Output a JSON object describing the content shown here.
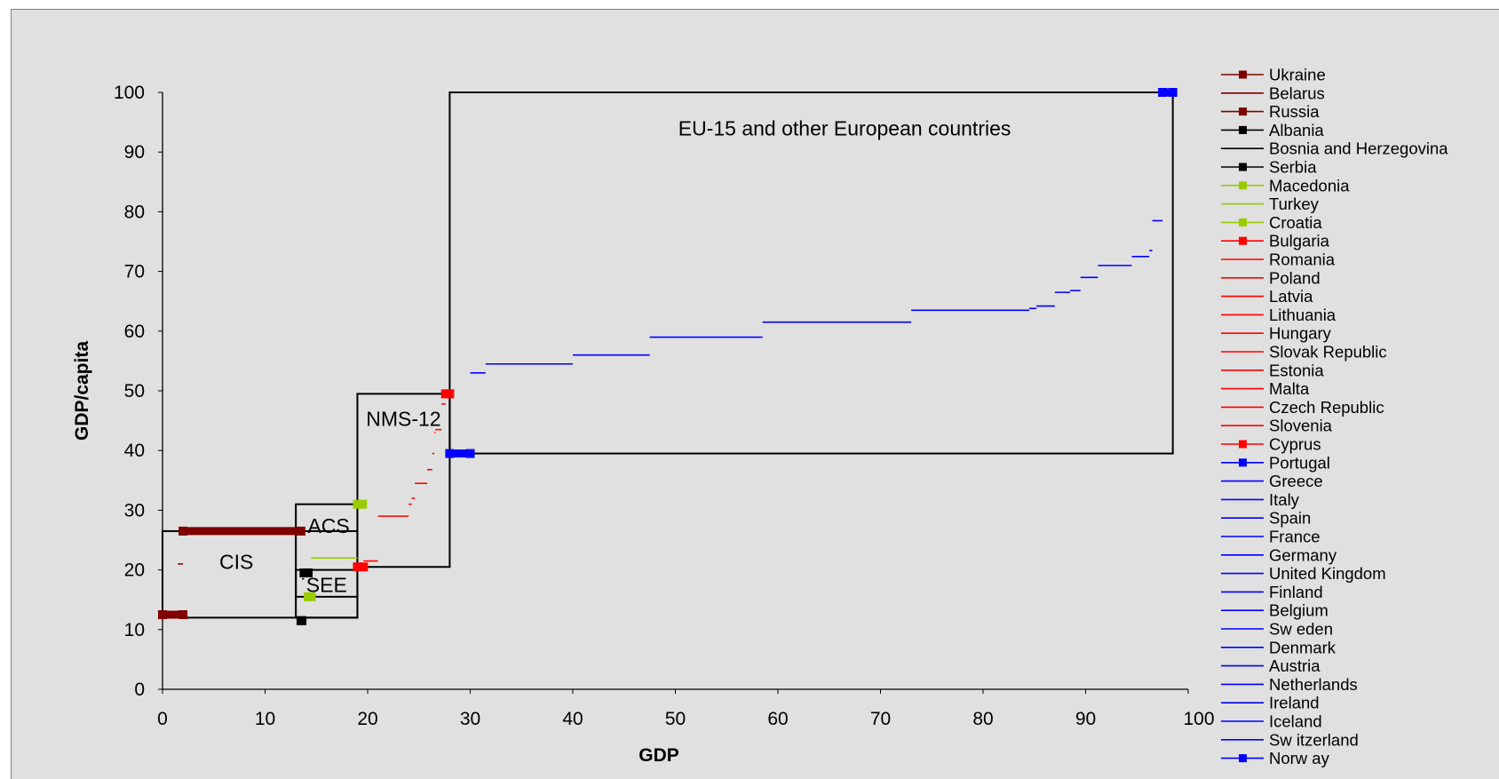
{
  "chart_data": {
    "type": "line",
    "xlabel": "GDP",
    "ylabel": "GDP/capita",
    "xlim": [
      0,
      100
    ],
    "ylim": [
      0,
      100
    ],
    "x_ticks": [
      "0",
      "10",
      "20",
      "30",
      "40",
      "50",
      "60",
      "70",
      "80",
      "90",
      "100"
    ],
    "y_ticks": [
      "0",
      "10",
      "20",
      "30",
      "40",
      "50",
      "60",
      "70",
      "80",
      "90",
      "100"
    ],
    "grid": false,
    "legend_position": "right",
    "regions": [
      {
        "label": "CIS",
        "x": [
          0,
          19
        ],
        "y": [
          12,
          26.5
        ]
      },
      {
        "label": "ACS",
        "x": [
          13,
          19
        ],
        "y": [
          12,
          31
        ]
      },
      {
        "label": "SEE",
        "x": [
          13,
          19
        ],
        "y": [
          15.5,
          20
        ]
      },
      {
        "label": "NMS-12",
        "x": [
          19,
          28
        ],
        "y": [
          20.5,
          49.5
        ]
      },
      {
        "label": "EU-15 and other European countries",
        "x": [
          28,
          98.5
        ],
        "y": [
          39.5,
          100
        ]
      }
    ],
    "series": [
      {
        "name": "Ukraine",
        "color": "#800000",
        "marker": "square",
        "x": [
          0,
          2
        ],
        "y": [
          12.5,
          12.5
        ]
      },
      {
        "name": "Belarus",
        "color": "#800000",
        "marker": "none",
        "x": [
          1.5,
          2
        ],
        "y": [
          21,
          21
        ]
      },
      {
        "name": "Russia",
        "color": "#800000",
        "marker": "square",
        "x": [
          2,
          13.5
        ],
        "y": [
          26.5,
          26.5
        ]
      },
      {
        "name": "Albania",
        "color": "#000000",
        "marker": "square",
        "x": [
          13.5,
          13.6
        ],
        "y": [
          11.5,
          11.5
        ]
      },
      {
        "name": "Bosnia and Herzegovina",
        "color": "#000000",
        "marker": "none",
        "x": [
          13.6,
          13.8
        ],
        "y": [
          18.5,
          18.5
        ]
      },
      {
        "name": "Serbia",
        "color": "#000000",
        "marker": "square",
        "x": [
          13.8,
          14.2
        ],
        "y": [
          19.5,
          19.5
        ]
      },
      {
        "name": "Macedonia",
        "color": "#99cc00",
        "marker": "square",
        "x": [
          14.2,
          14.5
        ],
        "y": [
          15.5,
          15.5
        ]
      },
      {
        "name": "Turkey",
        "color": "#99cc00",
        "marker": "none",
        "x": [
          14.5,
          19
        ],
        "y": [
          22,
          22
        ]
      },
      {
        "name": "Croatia",
        "color": "#99cc00",
        "marker": "square",
        "x": [
          19,
          19.5
        ],
        "y": [
          31,
          31
        ]
      },
      {
        "name": "Bulgaria",
        "color": "#ff0000",
        "marker": "square",
        "x": [
          19,
          19.6
        ],
        "y": [
          20.5,
          20.5
        ]
      },
      {
        "name": "Romania",
        "color": "#ff0000",
        "marker": "none",
        "x": [
          19.6,
          21
        ],
        "y": [
          21.5,
          21.5
        ]
      },
      {
        "name": "Poland",
        "color": "#ff0000",
        "marker": "none",
        "x": [
          21,
          24
        ],
        "y": [
          29,
          29
        ]
      },
      {
        "name": "Latvia",
        "color": "#ff0000",
        "marker": "none",
        "x": [
          24,
          24.3
        ],
        "y": [
          31,
          31
        ]
      },
      {
        "name": "Lithuania",
        "color": "#ff0000",
        "marker": "none",
        "x": [
          24.3,
          24.6
        ],
        "y": [
          32,
          32
        ]
      },
      {
        "name": "Hungary",
        "color": "#ff0000",
        "marker": "none",
        "x": [
          24.6,
          25.8
        ],
        "y": [
          34.5,
          34.5
        ]
      },
      {
        "name": "Slovak Republic",
        "color": "#ff0000",
        "marker": "none",
        "x": [
          25.8,
          26.3
        ],
        "y": [
          36.8,
          36.8
        ]
      },
      {
        "name": "Estonia",
        "color": "#ff0000",
        "marker": "none",
        "x": [
          26.3,
          26.5
        ],
        "y": [
          39.5,
          39.5
        ]
      },
      {
        "name": "Malta",
        "color": "#ff0000",
        "marker": "none",
        "x": [
          26.5,
          26.6
        ],
        "y": [
          43,
          43
        ]
      },
      {
        "name": "Czech Republic",
        "color": "#ff0000",
        "marker": "none",
        "x": [
          26.6,
          27.2
        ],
        "y": [
          43.5,
          43.5
        ]
      },
      {
        "name": "Slovenia",
        "color": "#ff0000",
        "marker": "none",
        "x": [
          27.2,
          27.6
        ],
        "y": [
          47.8,
          47.8
        ]
      },
      {
        "name": "Cyprus",
        "color": "#ff0000",
        "marker": "square",
        "x": [
          27.6,
          28
        ],
        "y": [
          49.5,
          49.5
        ]
      },
      {
        "name": "Portugal",
        "color": "#0000ff",
        "marker": "square",
        "x": [
          28,
          30
        ],
        "y": [
          39.5,
          39.5
        ]
      },
      {
        "name": "Greece",
        "color": "#0000ff",
        "marker": "none",
        "x": [
          30,
          31.5
        ],
        "y": [
          53,
          53
        ]
      },
      {
        "name": "Italy",
        "color": "#0000ff",
        "marker": "none",
        "x": [
          31.5,
          40
        ],
        "y": [
          54.5,
          54.5
        ]
      },
      {
        "name": "Spain",
        "color": "#0000ff",
        "marker": "none",
        "x": [
          40,
          47.5
        ],
        "y": [
          56,
          56
        ]
      },
      {
        "name": "France",
        "color": "#0000ff",
        "marker": "none",
        "x": [
          47.5,
          58.5
        ],
        "y": [
          59,
          59
        ]
      },
      {
        "name": "Germany",
        "color": "#0000ff",
        "marker": "none",
        "x": [
          58.5,
          73
        ],
        "y": [
          61.5,
          61.5
        ]
      },
      {
        "name": "United Kingdom",
        "color": "#0000ff",
        "marker": "none",
        "x": [
          73,
          84.5
        ],
        "y": [
          63.5,
          63.5
        ]
      },
      {
        "name": "Finland",
        "color": "#0000ff",
        "marker": "none",
        "x": [
          84.5,
          85.2
        ],
        "y": [
          63.8,
          63.8
        ]
      },
      {
        "name": "Belgium",
        "color": "#0000ff",
        "marker": "none",
        "x": [
          85.2,
          87
        ],
        "y": [
          64.2,
          64.2
        ]
      },
      {
        "name": "Sw eden",
        "color": "#0000ff",
        "marker": "none",
        "x": [
          87,
          88.5
        ],
        "y": [
          66.5,
          66.5
        ]
      },
      {
        "name": "Denmark",
        "color": "#0000ff",
        "marker": "none",
        "x": [
          88.5,
          89.5
        ],
        "y": [
          66.8,
          66.8
        ]
      },
      {
        "name": "Austria",
        "color": "#0000ff",
        "marker": "none",
        "x": [
          89.5,
          91.2
        ],
        "y": [
          69,
          69
        ]
      },
      {
        "name": "Netherlands",
        "color": "#0000ff",
        "marker": "none",
        "x": [
          91.2,
          94.5
        ],
        "y": [
          71,
          71
        ]
      },
      {
        "name": "Ireland",
        "color": "#0000ff",
        "marker": "none",
        "x": [
          94.5,
          96.2
        ],
        "y": [
          72.5,
          72.5
        ]
      },
      {
        "name": "Iceland",
        "color": "#0000ff",
        "marker": "none",
        "x": [
          96.2,
          96.5
        ],
        "y": [
          73.5,
          73.5
        ]
      },
      {
        "name": "Sw itzerland",
        "color": "#0000ff",
        "marker": "none",
        "x": [
          96.5,
          97.5
        ],
        "y": [
          78.5,
          78.5
        ]
      },
      {
        "name": "Norw ay",
        "color": "#0000ff",
        "marker": "square",
        "x": [
          97.5,
          98.5
        ],
        "y": [
          100,
          100
        ]
      }
    ]
  }
}
